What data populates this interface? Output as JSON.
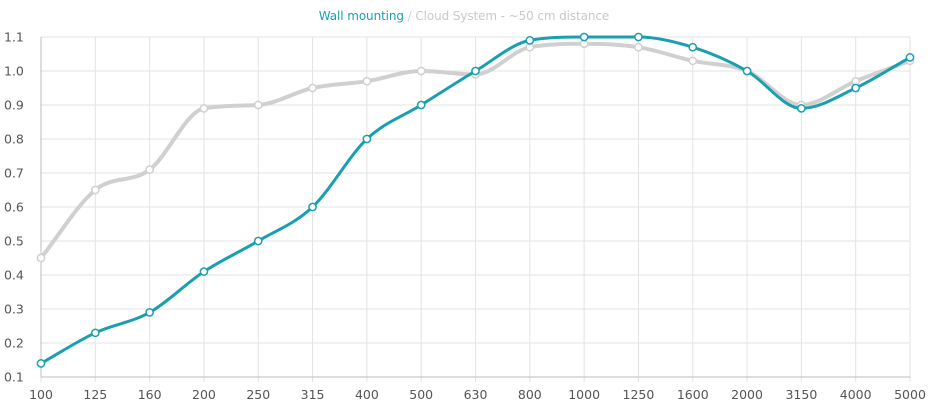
{
  "chart_data": {
    "type": "line",
    "title_parts": {
      "series_a": "Wall mounting",
      "separator": " / ",
      "series_b": "Cloud System - ~50 cm distance"
    },
    "categories": [
      "100",
      "125",
      "160",
      "200",
      "250",
      "315",
      "400",
      "500",
      "630",
      "800",
      "1000",
      "1250",
      "1600",
      "2000",
      "3150",
      "4000",
      "5000"
    ],
    "y_ticks": [
      "0.1",
      "0.2",
      "0.3",
      "0.4",
      "0.5",
      "0.6",
      "0.7",
      "0.8",
      "0.9",
      "1.0",
      "1.1"
    ],
    "ylim": [
      0.1,
      1.1
    ],
    "grid": true,
    "series": [
      {
        "name": "Cloud System - ~50 cm distance",
        "color": "#d0d0d0",
        "values": [
          0.45,
          0.65,
          0.71,
          0.89,
          0.9,
          0.95,
          0.97,
          1.0,
          0.99,
          1.07,
          1.08,
          1.07,
          1.03,
          1.0,
          0.9,
          0.97,
          1.03
        ]
      },
      {
        "name": "Wall mounting",
        "color": "#1a9fb0",
        "values": [
          0.14,
          0.23,
          0.29,
          0.41,
          0.5,
          0.6,
          0.8,
          0.9,
          1.0,
          1.09,
          1.1,
          1.1,
          1.07,
          1.0,
          0.89,
          0.95,
          1.04
        ]
      }
    ]
  }
}
